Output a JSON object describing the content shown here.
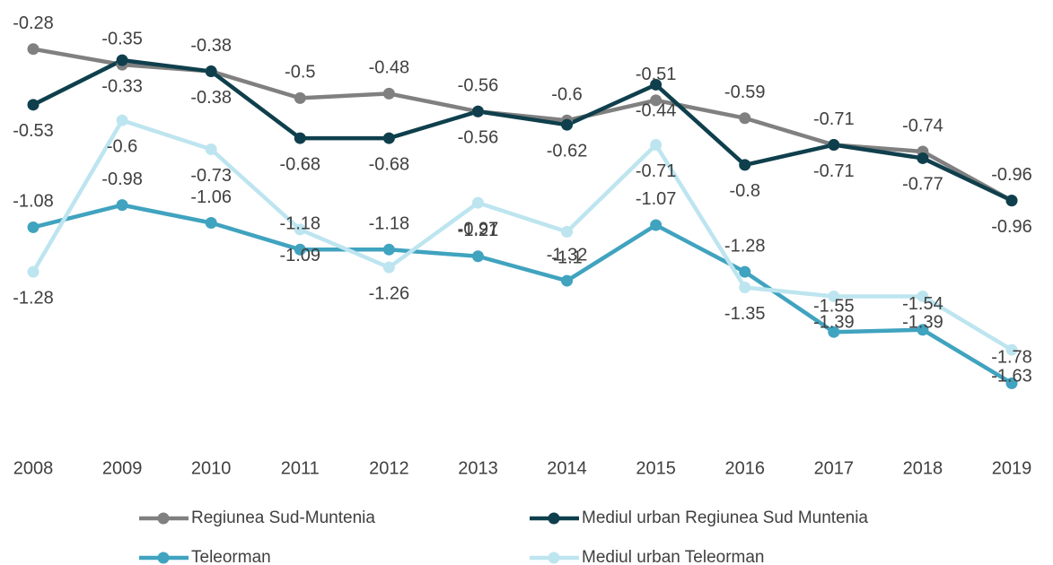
{
  "chart_data": {
    "type": "line",
    "categories": [
      "2008",
      "2009",
      "2010",
      "2011",
      "2012",
      "2013",
      "2014",
      "2015",
      "2016",
      "2017",
      "2018",
      "2019"
    ],
    "series": [
      {
        "name": "Regiunea Sud-Muntenia",
        "color": "#808080",
        "values": [
          -0.28,
          -0.35,
          -0.38,
          -0.5,
          -0.48,
          -0.56,
          -0.6,
          -0.51,
          -0.59,
          -0.71,
          -0.74,
          -0.96
        ]
      },
      {
        "name": "Mediul urban Regiunea Sud Muntenia",
        "color": "#0f3f4c",
        "values": [
          -0.53,
          -0.33,
          -0.38,
          -0.68,
          -0.68,
          -0.56,
          -0.62,
          -0.44,
          -0.8,
          -0.71,
          -0.77,
          -0.96
        ]
      },
      {
        "name": "Teleorman",
        "color": "#40a3bf",
        "values": [
          -1.08,
          -0.98,
          -1.06,
          -1.18,
          -1.18,
          -1.21,
          -1.32,
          -1.07,
          -1.28,
          -1.55,
          -1.54,
          -1.78
        ]
      },
      {
        "name": "Mediul urban Teleorman",
        "color": "#bde5f0",
        "values": [
          -1.28,
          -0.6,
          -0.73,
          -1.09,
          -1.26,
          -0.97,
          -1.1,
          -0.71,
          -1.35,
          -1.39,
          -1.39,
          -1.63
        ]
      }
    ],
    "ylim": [
      -2.0,
      -0.1
    ],
    "legend": "bottom"
  }
}
